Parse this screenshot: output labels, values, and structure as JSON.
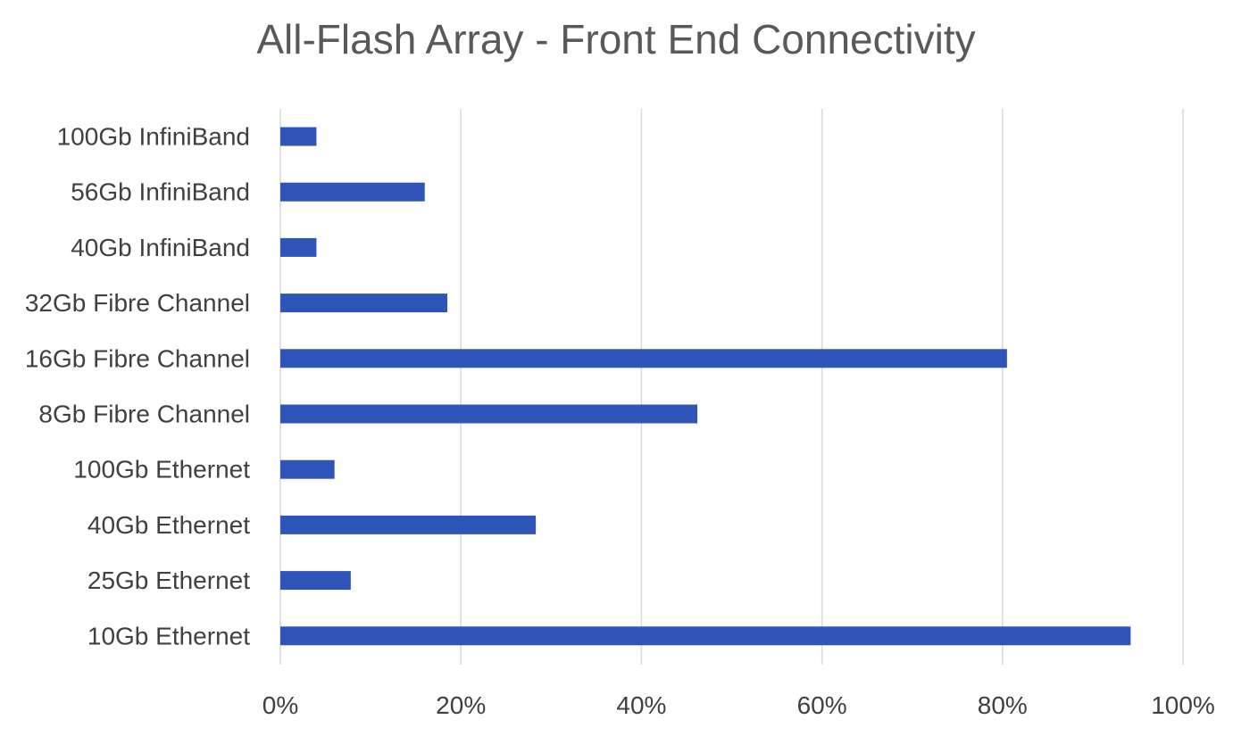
{
  "chart_data": {
    "type": "bar",
    "orientation": "horizontal",
    "title": "All-Flash Array - Front End Connectivity",
    "xlabel": "",
    "ylabel": "",
    "categories": [
      "100Gb InfiniBand",
      "56Gb InfiniBand",
      "40Gb InfiniBand",
      "32Gb Fibre Channel",
      "16Gb Fibre Channel",
      "8Gb Fibre Channel",
      "100Gb Ethernet",
      "40Gb Ethernet",
      "25Gb Ethernet",
      "10Gb Ethernet"
    ],
    "values": [
      4,
      16,
      4,
      18.5,
      80.5,
      46.2,
      6,
      28.3,
      7.8,
      94.2
    ],
    "xlim": [
      0,
      100
    ],
    "x_ticks": [
      0,
      20,
      40,
      60,
      80,
      100
    ],
    "x_tick_labels": [
      "0%",
      "20%",
      "40%",
      "60%",
      "80%",
      "100%"
    ],
    "grid": "vertical",
    "legend": "none",
    "bar_color": "#2f55b8"
  }
}
